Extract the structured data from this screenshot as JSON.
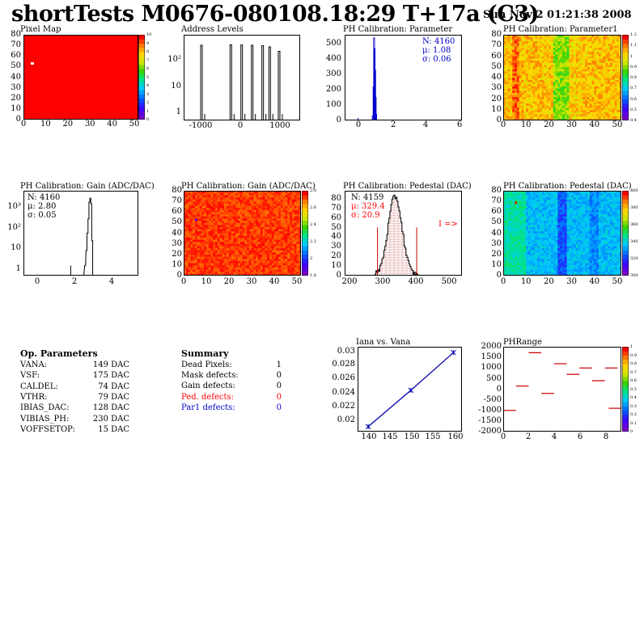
{
  "header": {
    "title": "shortTests M0676-080108.18:29 T+17a (C3)",
    "date": "Sun Nov  2 01:21:38 2008"
  },
  "colors": {
    "red": "#ff0000",
    "blue": "#0000cc",
    "hist_red": "#cc0000",
    "line_blue": "#0000aa"
  },
  "chart_data": [
    {
      "id": "pixel-map",
      "type": "heatmap",
      "title": "Pixel Map",
      "xlim": [
        0,
        52
      ],
      "ylim": [
        0,
        80
      ],
      "xticks": [
        "0",
        "10",
        "20",
        "30",
        "40",
        "50"
      ],
      "yticks": [
        "0",
        "10",
        "20",
        "30",
        "40",
        "50",
        "60",
        "70",
        "80"
      ],
      "zticks": [
        "0",
        "1",
        "2",
        "3",
        "4",
        "5",
        "6",
        "7",
        "8",
        "9",
        "10"
      ],
      "fill_value": 10,
      "dead_pixels": [
        {
          "x": 5,
          "y": 52
        }
      ]
    },
    {
      "id": "address-levels",
      "type": "bar",
      "title": "Address Levels",
      "xticks": [
        "-1000",
        "0",
        "1000"
      ],
      "yticks": [
        "1",
        "10",
        "10²"
      ],
      "yscale": "log",
      "peaks_x": [
        -1000,
        -160,
        150,
        450,
        750,
        950,
        1220
      ],
      "peaks_y": [
        400,
        420,
        410,
        400,
        380,
        330,
        200
      ]
    },
    {
      "id": "ph-param",
      "type": "bar",
      "title": "PH Calibration: Parameter",
      "xticks": [
        "0",
        "2",
        "4",
        "6"
      ],
      "yticks": [
        "0",
        "100",
        "200",
        "300",
        "400",
        "500"
      ],
      "xlim": [
        -0.6,
        6
      ],
      "ylim": [
        0,
        560
      ],
      "stats": {
        "n": "N: 4160",
        "mean": "μ: 1.08",
        "sigma": "σ: 0.06"
      }
    },
    {
      "id": "ph-param1",
      "type": "heatmap",
      "title": "PH Calibration: Parameter1",
      "xticks": [
        "0",
        "10",
        "20",
        "30",
        "40",
        "50"
      ],
      "yticks": [
        "0",
        "10",
        "20",
        "30",
        "40",
        "50",
        "60",
        "70",
        "80"
      ],
      "zticks": [
        "0.4",
        "0.5",
        "0.6",
        "0.7",
        "0.8",
        "0.9",
        "1",
        "1.1",
        "1.2"
      ]
    },
    {
      "id": "gain-hist",
      "type": "bar",
      "title": "PH Calibration: Gain (ADC/DAC)",
      "xticks": [
        "0",
        "2",
        "4"
      ],
      "yticks": [
        "1",
        "10",
        "10²",
        "10³"
      ],
      "yscale": "log",
      "stats": {
        "n": "N: 4160",
        "mean": "μ: 2.80",
        "sigma": "σ: 0.05"
      }
    },
    {
      "id": "gain-map",
      "type": "heatmap",
      "title": "PH Calibration: Gain (ADC/DAC)",
      "xticks": [
        "0",
        "10",
        "20",
        "30",
        "40",
        "50"
      ],
      "yticks": [
        "0",
        "10",
        "20",
        "30",
        "40",
        "50",
        "60",
        "70",
        "80"
      ],
      "zticks": [
        "1.8",
        "2",
        "2.2",
        "2.4",
        "2.6",
        "2.8"
      ]
    },
    {
      "id": "pedestal-hist",
      "type": "bar",
      "title": "PH Calibration: Pedestal (DAC)",
      "xticks": [
        "200",
        "300",
        "400",
        "500"
      ],
      "yticks": [
        "0",
        "10",
        "20",
        "30",
        "40",
        "50",
        "60",
        "70",
        "80"
      ],
      "xlim": [
        180,
        530
      ],
      "ylim": [
        0,
        88
      ],
      "stats": {
        "n": "N: 4159",
        "mean": "μ: 329.4",
        "sigma": "σ: 20.9"
      },
      "cut_lines": [
        278,
        395
      ],
      "arrow_label": "I =>"
    },
    {
      "id": "pedestal-map",
      "type": "heatmap",
      "title": "PH Calibration: Pedestal (DAC)",
      "xticks": [
        "0",
        "10",
        "20",
        "30",
        "40",
        "50"
      ],
      "yticks": [
        "0",
        "10",
        "20",
        "30",
        "40",
        "50",
        "60",
        "70",
        "80"
      ],
      "zticks": [
        "300",
        "320",
        "340",
        "360",
        "380",
        "400"
      ]
    },
    {
      "id": "iana-vana",
      "type": "line",
      "title": "Iana vs. Vana",
      "x": [
        139,
        149,
        159
      ],
      "y": [
        0.0195,
        0.0245,
        0.0297
      ],
      "xticks": [
        "140",
        "145",
        "150",
        "155",
        "160"
      ],
      "yticks": [
        "0.02",
        "0.022",
        "0.024",
        "0.026",
        "0.028",
        "0.03"
      ],
      "xlim": [
        136.5,
        161
      ],
      "ylim": [
        0.0188,
        0.0305
      ]
    },
    {
      "id": "phrange",
      "type": "scatter",
      "title": "PHRange",
      "xticks": [
        "0",
        "2",
        "4",
        "6",
        "8"
      ],
      "yticks": [
        "-2000",
        "-1500",
        "-1000",
        "-500",
        "0",
        "500",
        "1000",
        "1500",
        "2000"
      ],
      "zticks": [
        "0",
        "0.1",
        "0.2",
        "0.3",
        "0.4",
        "0.5",
        "0.6",
        "0.7",
        "0.8",
        "0.9",
        "1"
      ],
      "xlim": [
        0,
        9.3
      ],
      "ylim": [
        -2000,
        2000
      ],
      "segments": [
        {
          "x": 0.5,
          "y": -1000
        },
        {
          "x": 1.5,
          "y": 150
        },
        {
          "x": 2.5,
          "y": 1720
        },
        {
          "x": 3.5,
          "y": -200
        },
        {
          "x": 4.5,
          "y": 1200
        },
        {
          "x": 5.5,
          "y": 700
        },
        {
          "x": 6.5,
          "y": 1000
        },
        {
          "x": 7.5,
          "y": 400
        },
        {
          "x": 8.5,
          "y": 1000
        },
        {
          "x": 8.8,
          "y": -900
        }
      ]
    }
  ],
  "op_params": {
    "title": "Op. Parameters",
    "rows": [
      {
        "name": "VANA:",
        "value": "149 DAC"
      },
      {
        "name": "VSF:",
        "value": "175 DAC"
      },
      {
        "name": "CALDEL:",
        "value": "74 DAC"
      },
      {
        "name": "VTHR:",
        "value": "79 DAC"
      },
      {
        "name": "IBIAS_DAC:",
        "value": "128 DAC"
      },
      {
        "name": "VIBIAS_PH:",
        "value": "230 DAC"
      },
      {
        "name": "VOFFSETOP:",
        "value": "15 DAC"
      }
    ]
  },
  "summary": {
    "title": "Summary",
    "rows": [
      {
        "name": "Dead Pixels:",
        "value": "1",
        "color": "#000000"
      },
      {
        "name": "Mask defects:",
        "value": "0",
        "color": "#000000"
      },
      {
        "name": "Gain defects:",
        "value": "0",
        "color": "#000000"
      },
      {
        "name": "Ped. defects:",
        "value": "0",
        "color": "#ff0000"
      },
      {
        "name": "Par1 defects:",
        "value": "0",
        "color": "#0000cc"
      }
    ]
  }
}
